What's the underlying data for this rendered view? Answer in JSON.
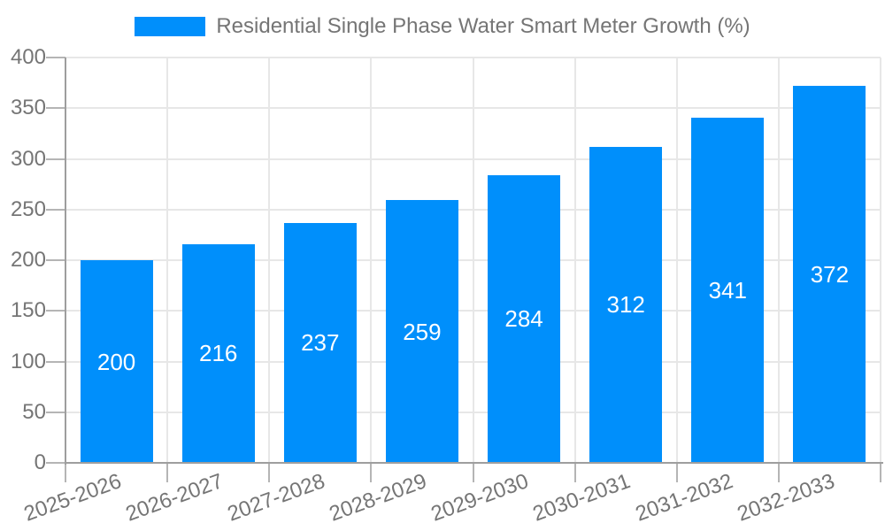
{
  "legend": {
    "label": "Residential Single Phase Water Smart Meter Growth (%)",
    "swatch_color": "#008FFB"
  },
  "chart_data": {
    "type": "bar",
    "title": "Residential Single Phase Water Smart Meter Growth (%)",
    "categories": [
      "2025-2026",
      "2026-2027",
      "2027-2028",
      "2028-2029",
      "2029-2030",
      "2030-2031",
      "2031-2032",
      "2032-2033"
    ],
    "values": [
      200,
      216,
      237,
      259,
      284,
      312,
      341,
      372
    ],
    "xlabel": "",
    "ylabel": "",
    "ylim": [
      0,
      400
    ],
    "ytick_step": 50,
    "ytick_labels": [
      "0",
      "50",
      "100",
      "150",
      "200",
      "250",
      "300",
      "350",
      "400"
    ],
    "grid": true,
    "legend_position": "top",
    "bar_color": "#008FFB",
    "value_label_color": "#FFFFFF",
    "axis_label_color": "#757575",
    "gridline_color": "#E7E7E7",
    "value_labels_shown": true,
    "x_label_rotation_deg": -20
  }
}
